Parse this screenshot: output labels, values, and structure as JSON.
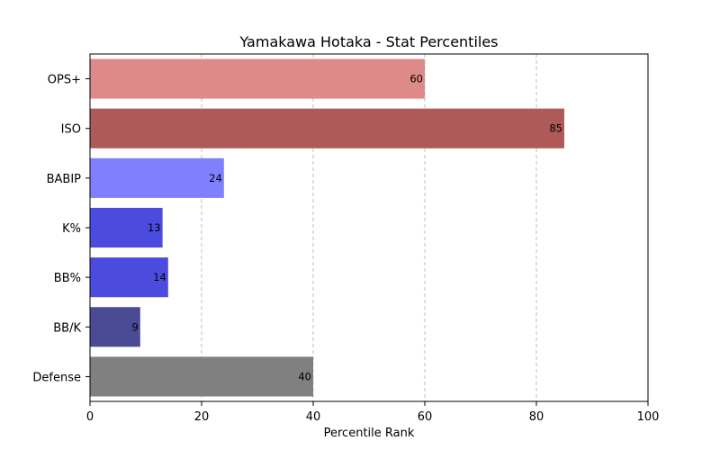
{
  "chart_data": {
    "type": "bar",
    "orientation": "horizontal",
    "title": "Yamakawa Hotaka - Stat Percentiles",
    "xlabel": "Percentile Rank",
    "ylabel": "",
    "xlim": [
      0,
      100
    ],
    "xticks": [
      0,
      20,
      40,
      60,
      80,
      100
    ],
    "grid": "x-dashed",
    "categories": [
      "OPS+",
      "ISO",
      "BABIP",
      "K%",
      "BB%",
      "BB/K",
      "Defense"
    ],
    "values": [
      60,
      85,
      24,
      13,
      14,
      9,
      40
    ],
    "colors": [
      "#de8a89",
      "#ad5a59",
      "#8080ff",
      "#4b4bdd",
      "#4b4bdd",
      "#4b4b95",
      "#808080"
    ]
  }
}
